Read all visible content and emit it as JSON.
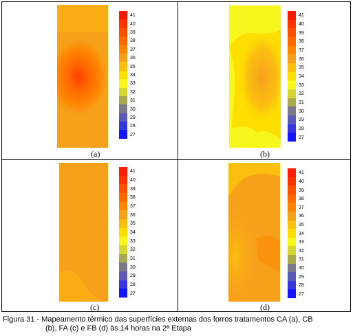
{
  "colorbar": {
    "ticks": [
      "41",
      "40",
      "39",
      "38",
      "37",
      "36",
      "35",
      "34",
      "33",
      "32",
      "31",
      "30",
      "29",
      "28",
      "27"
    ],
    "colors": [
      "#ff1a00",
      "#ff3300",
      "#ff5000",
      "#ff6a00",
      "#ff8500",
      "#f7a11a",
      "#fbbf10",
      "#ffdf00",
      "#f7f71e",
      "#d6d632",
      "#a8a84e",
      "#7a7a8a",
      "#5a5ab8",
      "#3737df",
      "#1414ff"
    ]
  },
  "panels": [
    {
      "label": "(a)",
      "id": "a"
    },
    {
      "label": "(b)",
      "id": "b"
    },
    {
      "label": "(c)",
      "id": "c"
    },
    {
      "label": "(d)",
      "id": "d"
    }
  ],
  "caption": {
    "line1": "Figura 31 - Mapeamento térmico das superfícies externas dos forros tratamentos CA (a), CB",
    "line2": "(b), FA (c) e FB (d) às 14 horas na 2ª Etapa"
  }
}
